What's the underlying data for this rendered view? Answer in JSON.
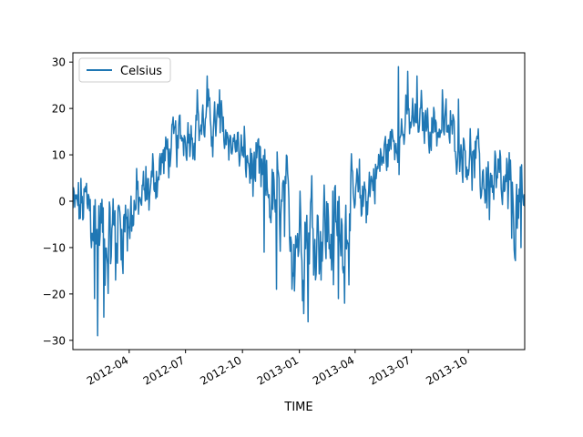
{
  "chart_data": {
    "type": "line",
    "xlabel": "TIME",
    "ylabel": "",
    "x_range": [
      "2012-01-01",
      "2013-12-31"
    ],
    "ylim": [
      -32,
      32
    ],
    "grid": false,
    "legend_position": "top-left",
    "x_ticks": [
      "2012-04",
      "2012-07",
      "2012-10",
      "2013-01",
      "2013-04",
      "2013-07",
      "2013-10"
    ],
    "y_ticks": [
      -30,
      -20,
      -10,
      0,
      10,
      20,
      30
    ],
    "series": [
      {
        "name": "Celsius",
        "color": "#1f77b4",
        "x": [
          "2012-01-01",
          "2012-01-15",
          "2012-02-01",
          "2012-02-15",
          "2012-03-01",
          "2012-03-15",
          "2012-04-01",
          "2012-04-15",
          "2012-05-01",
          "2012-05-15",
          "2012-06-01",
          "2012-06-15",
          "2012-07-01",
          "2012-07-15",
          "2012-08-01",
          "2012-08-15",
          "2012-09-01",
          "2012-09-15",
          "2012-10-01",
          "2012-10-15",
          "2012-11-01",
          "2012-11-15",
          "2012-12-01",
          "2012-12-15",
          "2013-01-01",
          "2013-01-15",
          "2013-02-01",
          "2013-02-15",
          "2013-03-01",
          "2013-03-15",
          "2013-04-01",
          "2013-04-15",
          "2013-05-01",
          "2013-05-15",
          "2013-06-01",
          "2013-06-15",
          "2013-07-01",
          "2013-07-15",
          "2013-08-01",
          "2013-08-15",
          "2013-09-01",
          "2013-09-15",
          "2013-10-01",
          "2013-10-15",
          "2013-11-01",
          "2013-11-15",
          "2013-12-01",
          "2013-12-15",
          "2013-12-31"
        ],
        "y": [
          -2,
          -1,
          -3,
          -6,
          -8,
          -5,
          -3,
          -1,
          2,
          6,
          10,
          12,
          15,
          16,
          17,
          17,
          15,
          13,
          10,
          7,
          4,
          1,
          -2,
          -5,
          -6,
          -5,
          -5,
          -6,
          -6,
          -4,
          -2,
          1,
          5,
          9,
          13,
          15,
          17,
          17,
          17,
          16,
          15,
          13,
          10,
          7,
          4,
          2,
          0,
          -2,
          -3
        ],
        "noise": [
          6,
          7,
          9,
          9,
          10,
          9,
          8,
          7,
          6,
          5,
          5,
          5,
          5,
          5,
          5,
          5,
          5,
          5,
          5,
          6,
          7,
          8,
          9,
          10,
          11,
          11,
          11,
          11,
          10,
          9,
          8,
          7,
          6,
          5,
          5,
          5,
          5,
          5,
          5,
          5,
          5,
          5,
          5,
          6,
          7,
          8,
          9,
          9,
          9
        ],
        "extremes": [
          [
            "2012-02-10",
            -29
          ],
          [
            "2012-02-20",
            -25
          ],
          [
            "2012-02-05",
            -21
          ],
          [
            "2012-03-10",
            -17
          ],
          [
            "2012-07-20",
            24
          ],
          [
            "2012-08-05",
            27
          ],
          [
            "2012-08-25",
            24
          ],
          [
            "2012-11-05",
            -11
          ],
          [
            "2012-11-25",
            -19
          ],
          [
            "2012-12-20",
            -19
          ],
          [
            "2013-01-15",
            -26
          ],
          [
            "2013-02-25",
            -18
          ],
          [
            "2013-03-05",
            -21
          ],
          [
            "2013-03-15",
            -22
          ],
          [
            "2013-06-10",
            29
          ],
          [
            "2013-06-25",
            28
          ],
          [
            "2013-07-10",
            27
          ],
          [
            "2013-08-20",
            24
          ],
          [
            "2013-09-15",
            22
          ],
          [
            "2013-10-15",
            14
          ],
          [
            "2013-12-25",
            -10
          ]
        ]
      }
    ]
  }
}
